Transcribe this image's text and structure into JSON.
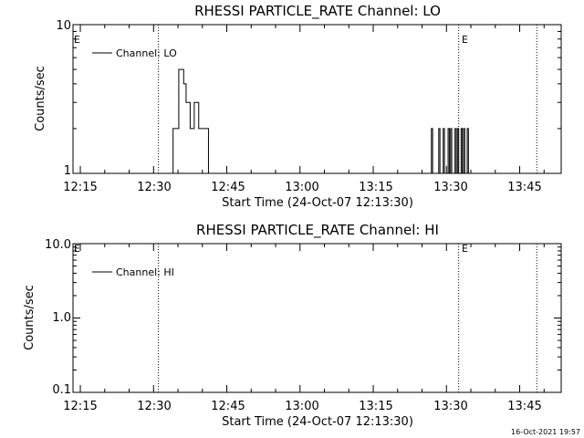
{
  "charts": [
    {
      "title": "RHESSI PARTICLE_RATE Channel: LO",
      "xlabel": "Start Time (24-Oct-07 12:13:30)",
      "ylabel": "Counts/sec",
      "legend": "Channel: LO",
      "marker": "E",
      "xticks": [
        "12:15",
        "12:30",
        "12:45",
        "13:00",
        "13:15",
        "13:30",
        "13:45"
      ],
      "yticks": [
        "10",
        "1"
      ]
    },
    {
      "title": "RHESSI PARTICLE_RATE Channel: HI",
      "xlabel": "Start Time (24-Oct-07 12:13:30)",
      "ylabel": "Counts/sec",
      "legend": "Channel: HI",
      "marker": "E",
      "xticks": [
        "12:15",
        "12:30",
        "12:45",
        "13:00",
        "13:15",
        "13:30",
        "13:45"
      ],
      "yticks": [
        "10.0",
        "1.0",
        "0.1"
      ]
    }
  ],
  "timestamp": "16-Oct-2021 19:57",
  "chart_data": [
    {
      "type": "line",
      "title": "RHESSI PARTICLE_RATE Channel: LO",
      "xlabel": "Start Time (24-Oct-07 12:13:30)",
      "ylabel": "Counts/sec",
      "y_scale": "log",
      "ylim": [
        1,
        10
      ],
      "xlim": [
        "12:13:30",
        "13:53:30"
      ],
      "legend_position": "top-left",
      "vertical_dotted_lines": [
        "12:31:00",
        "13:32:30",
        "13:48:30"
      ],
      "E_markers": [
        "12:13:30",
        "13:32:30"
      ],
      "series": [
        {
          "name": "Channel: LO",
          "points": [
            [
              "12:33:00",
              1
            ],
            [
              "12:34:00",
              2
            ],
            [
              "12:34:45",
              2
            ],
            [
              "12:35:10",
              5
            ],
            [
              "12:35:40",
              5
            ],
            [
              "12:36:10",
              4
            ],
            [
              "12:36:40",
              3
            ],
            [
              "12:37:10",
              3
            ],
            [
              "12:37:30",
              2
            ],
            [
              "12:38:00",
              2
            ],
            [
              "12:38:20",
              3
            ],
            [
              "12:38:45",
              3
            ],
            [
              "12:39:15",
              2
            ],
            [
              "12:40:30",
              2
            ],
            [
              "12:41:15",
              1
            ],
            [
              "13:26:40",
              1
            ],
            [
              "13:26:55",
              2
            ],
            [
              "13:27:10",
              1
            ],
            [
              "13:28:10",
              1
            ],
            [
              "13:28:25",
              2
            ],
            [
              "13:28:40",
              1
            ],
            [
              "13:29:20",
              2
            ],
            [
              "13:29:35",
              1
            ],
            [
              "13:30:20",
              2
            ],
            [
              "13:30:35",
              1
            ],
            [
              "13:30:50",
              2
            ],
            [
              "13:31:05",
              1
            ],
            [
              "13:31:45",
              2
            ],
            [
              "13:32:00",
              1
            ],
            [
              "13:32:15",
              2
            ],
            [
              "13:32:30",
              1
            ],
            [
              "13:33:00",
              2
            ],
            [
              "13:33:15",
              1
            ],
            [
              "13:33:30",
              2
            ],
            [
              "13:33:45",
              1
            ],
            [
              "13:34:15",
              2
            ],
            [
              "13:34:30",
              1
            ]
          ]
        }
      ]
    },
    {
      "type": "line",
      "title": "RHESSI PARTICLE_RATE Channel: HI",
      "xlabel": "Start Time (24-Oct-07 12:13:30)",
      "ylabel": "Counts/sec",
      "y_scale": "log",
      "ylim": [
        0.1,
        10
      ],
      "xlim": [
        "12:13:30",
        "13:53:30"
      ],
      "legend_position": "top-left",
      "vertical_dotted_lines": [
        "12:31:00",
        "13:32:30",
        "13:48:30"
      ],
      "E_markers": [
        "12:13:30",
        "13:32:30"
      ],
      "series": [
        {
          "name": "Channel: HI",
          "points": []
        }
      ]
    }
  ]
}
